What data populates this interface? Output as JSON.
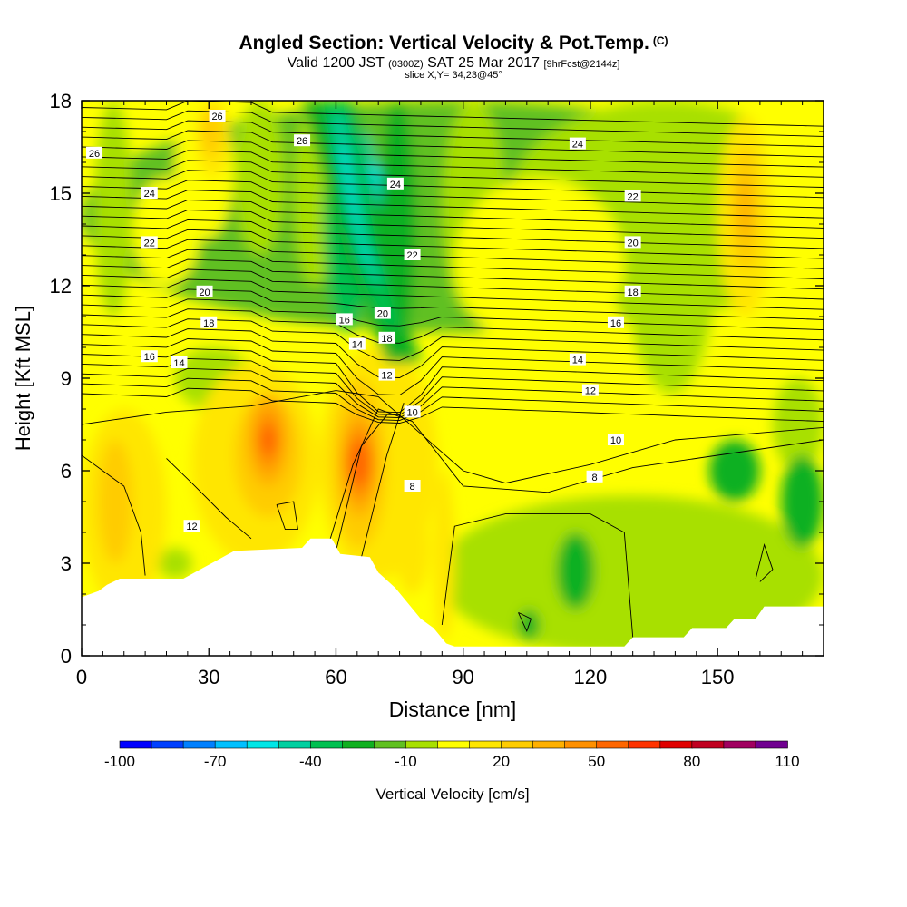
{
  "header": {
    "title": "Angled Section: Vertical Velocity & Pot.Temp.",
    "title_mark": "(C)",
    "valid_prefix": "Valid 1200 JST",
    "valid_zulu": "(0300Z)",
    "valid_date": "SAT 25 Mar 2017",
    "forecast": "[9hrFcst@2144z]",
    "slice": "slice X,Y= 34,23@45°"
  },
  "chart_data": {
    "type": "heatmap",
    "xlabel": "Distance [nm]",
    "ylabel": "Height [Kft MSL]",
    "xlim": [
      0,
      175
    ],
    "ylim": [
      0,
      18
    ],
    "x_ticks": [
      "0",
      "30",
      "60",
      "90",
      "120",
      "150"
    ],
    "y_ticks": [
      "0",
      "3",
      "6",
      "9",
      "12",
      "15",
      "18"
    ],
    "x_tick_values": [
      0,
      30,
      60,
      90,
      120,
      150
    ],
    "y_tick_values": [
      0,
      3,
      6,
      9,
      12,
      15,
      18
    ],
    "colorbar": {
      "label": "Vertical Velocity [cm/s]",
      "tick_labels": [
        "-100",
        "-70",
        "-40",
        "-10",
        "20",
        "50",
        "80",
        "110"
      ],
      "tick_values": [
        -100,
        -70,
        -40,
        -10,
        20,
        50,
        80,
        110
      ],
      "levels": [
        -100,
        -90,
        -80,
        -70,
        -60,
        -50,
        -40,
        -30,
        -20,
        -10,
        0,
        10,
        20,
        30,
        40,
        50,
        60,
        70,
        80,
        90,
        100,
        110
      ],
      "colors": [
        "#0000ff",
        "#0040ff",
        "#0080ff",
        "#00c0ff",
        "#00e6e6",
        "#00d0a0",
        "#00c050",
        "#10b020",
        "#60c020",
        "#a8e000",
        "#ffff00",
        "#ffe600",
        "#ffcc00",
        "#ffb000",
        "#ff9000",
        "#ff6600",
        "#ff3300",
        "#e00000",
        "#c00020",
        "#a00060",
        "#700090"
      ]
    },
    "terrain_kft": [
      [
        0,
        1.9
      ],
      [
        4,
        2.1
      ],
      [
        6,
        2.3
      ],
      [
        9,
        2.5
      ],
      [
        24,
        2.5
      ],
      [
        28,
        2.8
      ],
      [
        32,
        3.1
      ],
      [
        36,
        3.4
      ],
      [
        52,
        3.5
      ],
      [
        54,
        3.8
      ],
      [
        59,
        3.8
      ],
      [
        61,
        3.3
      ],
      [
        68,
        3.2
      ],
      [
        70,
        2.7
      ],
      [
        74,
        2.2
      ],
      [
        77,
        1.7
      ],
      [
        80,
        1.2
      ],
      [
        83,
        0.9
      ],
      [
        86,
        0.4
      ],
      [
        88,
        0.3
      ],
      [
        128,
        0.3
      ],
      [
        130,
        0.6
      ],
      [
        142,
        0.6
      ],
      [
        144,
        0.9
      ],
      [
        152,
        0.9
      ],
      [
        154,
        1.2
      ],
      [
        159,
        1.2
      ],
      [
        161,
        1.6
      ],
      [
        175,
        1.6
      ]
    ],
    "theta_labels": [
      {
        "text": "26",
        "x": 32,
        "y": 17.5
      },
      {
        "text": "26",
        "x": 52,
        "y": 16.7
      },
      {
        "text": "26",
        "x": 3,
        "y": 16.3
      },
      {
        "text": "24",
        "x": 74,
        "y": 15.3
      },
      {
        "text": "24",
        "x": 117,
        "y": 16.6
      },
      {
        "text": "24",
        "x": 16,
        "y": 15.0
      },
      {
        "text": "22",
        "x": 16,
        "y": 13.4
      },
      {
        "text": "22",
        "x": 78,
        "y": 13.0
      },
      {
        "text": "22",
        "x": 130,
        "y": 14.9
      },
      {
        "text": "20",
        "x": 29,
        "y": 11.8
      },
      {
        "text": "20",
        "x": 71,
        "y": 11.1
      },
      {
        "text": "20",
        "x": 130,
        "y": 13.4
      },
      {
        "text": "18",
        "x": 30,
        "y": 10.8
      },
      {
        "text": "18",
        "x": 72,
        "y": 10.3
      },
      {
        "text": "18",
        "x": 130,
        "y": 11.8
      },
      {
        "text": "16",
        "x": 62,
        "y": 10.9
      },
      {
        "text": "16",
        "x": 16,
        "y": 9.7
      },
      {
        "text": "16",
        "x": 126,
        "y": 10.8
      },
      {
        "text": "14",
        "x": 65,
        "y": 10.1
      },
      {
        "text": "14",
        "x": 23,
        "y": 9.5
      },
      {
        "text": "14",
        "x": 117,
        "y": 9.6
      },
      {
        "text": "12",
        "x": 72,
        "y": 9.1
      },
      {
        "text": "12",
        "x": 120,
        "y": 8.6
      },
      {
        "text": "12",
        "x": 26,
        "y": 4.2
      },
      {
        "text": "10",
        "x": 78,
        "y": 7.9
      },
      {
        "text": "10",
        "x": 126,
        "y": 7.0
      },
      {
        "text": "8",
        "x": 78,
        "y": 5.5
      },
      {
        "text": "8",
        "x": 121,
        "y": 5.8
      }
    ]
  }
}
